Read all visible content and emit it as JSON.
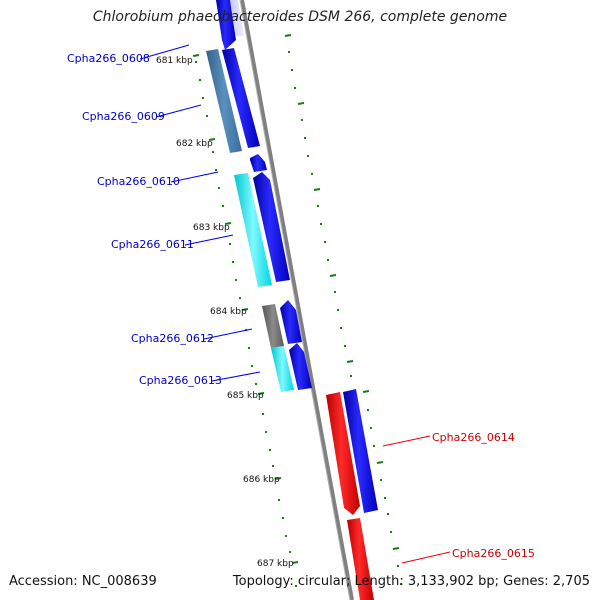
{
  "title": "Chlorobium phaeobacteroides DSM 266, complete genome",
  "footer": {
    "accession": "Accession: NC_008639",
    "summary": "Topology: circular; Length: 3,133,902 bp; Genes: 2,705"
  },
  "kbp_ticks": [
    "681 kbp",
    "682 kbp",
    "683 kbp",
    "684 kbp",
    "685 kbp",
    "686 kbp",
    "687 kbp"
  ],
  "genes": [
    {
      "locus": "Cpha266_0608",
      "strand": "left"
    },
    {
      "locus": "Cpha266_0609",
      "strand": "left"
    },
    {
      "locus": "Cpha266_0610",
      "strand": "left"
    },
    {
      "locus": "Cpha266_0611",
      "strand": "left"
    },
    {
      "locus": "Cpha266_0612",
      "strand": "left"
    },
    {
      "locus": "Cpha266_0613",
      "strand": "left"
    },
    {
      "locus": "Cpha266_0614",
      "strand": "right"
    },
    {
      "locus": "Cpha266_0615",
      "strand": "right"
    }
  ],
  "colors": {
    "backbone": "#808080",
    "tick": "#1a7a1a",
    "gene_left": "#0000ee",
    "gene_right": "#ee0000",
    "label_left": "#0000cc",
    "label_right": "#cc0000",
    "cog_steelblue": "#4682b4",
    "cog_cyan": "#00e5ee",
    "cog_gray": "#6e6e6e"
  }
}
